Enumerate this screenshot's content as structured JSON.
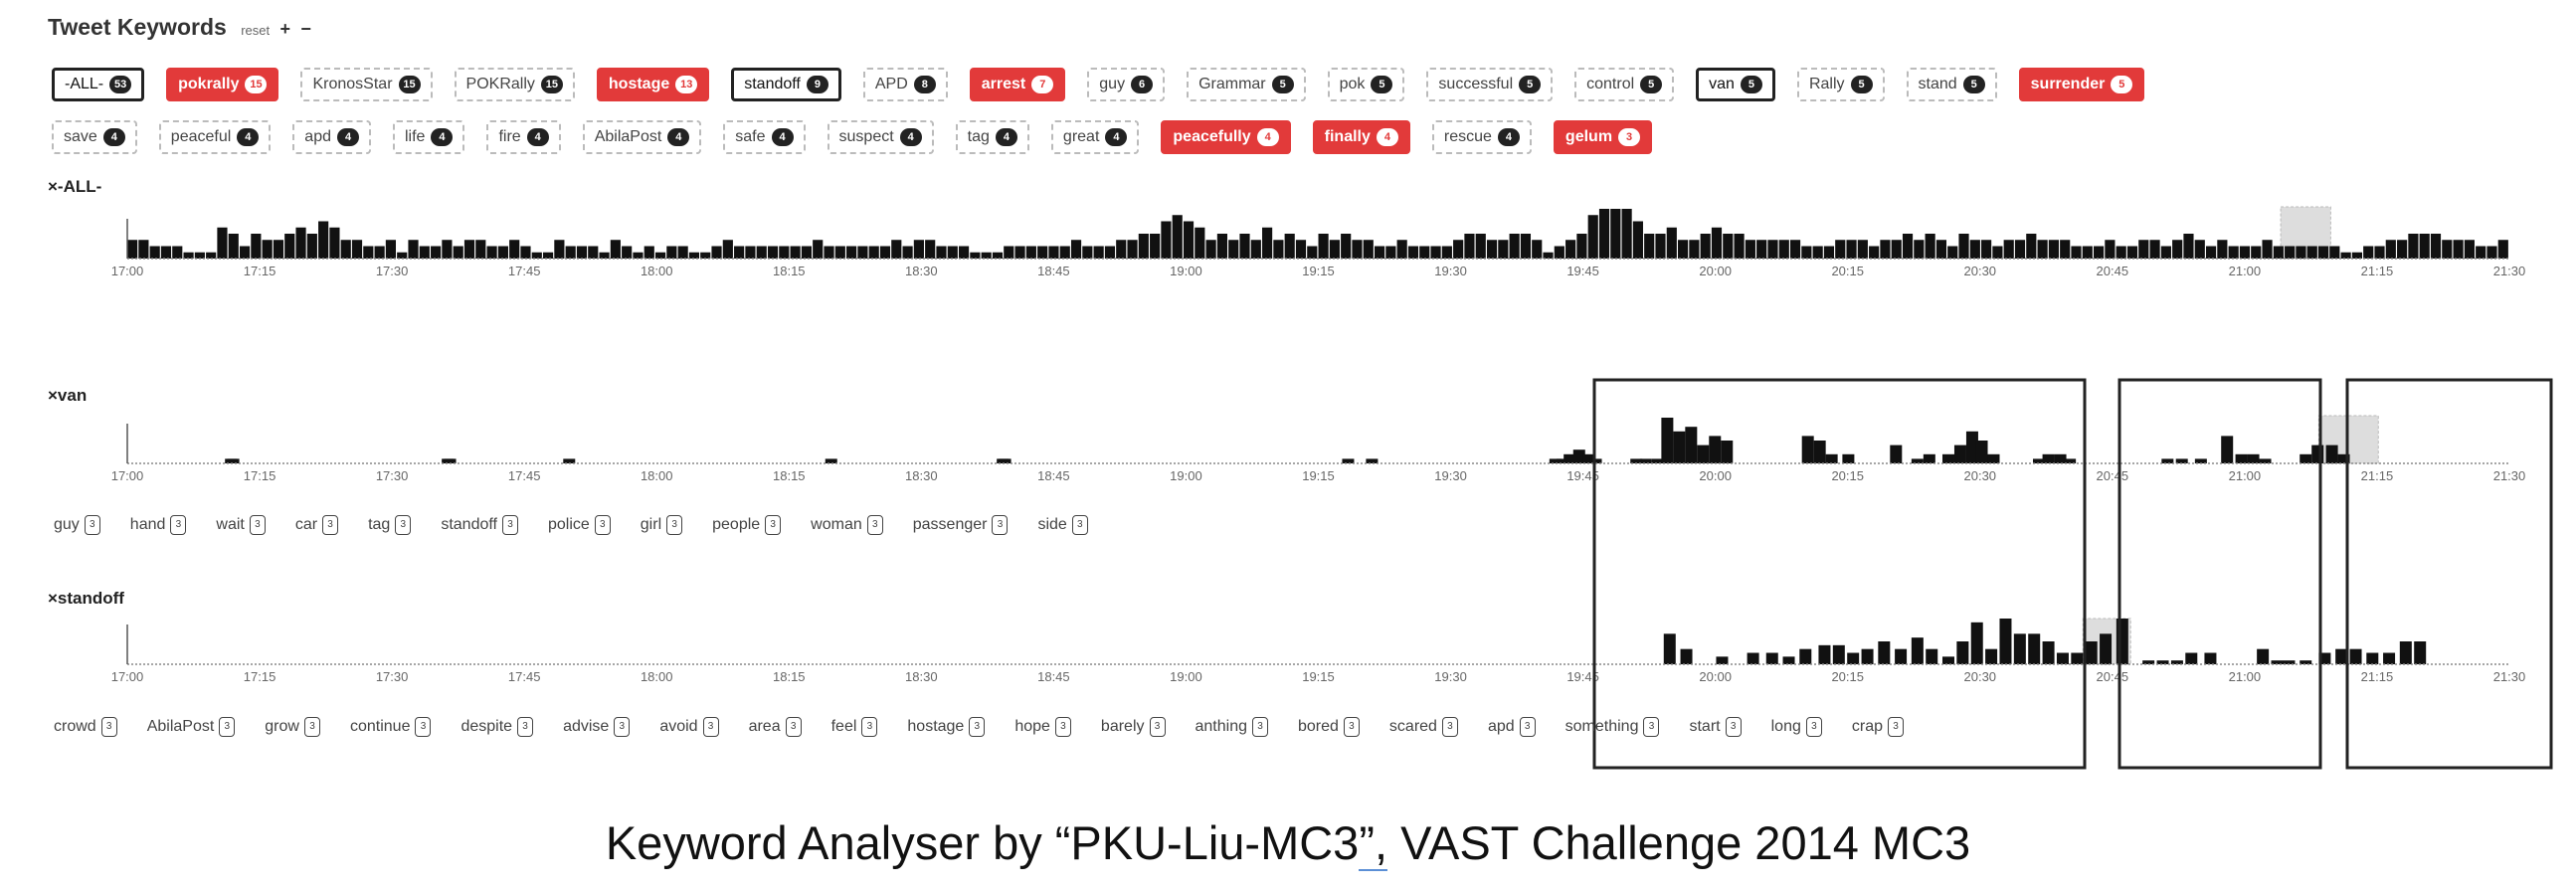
{
  "app": {
    "title": "Tweet Keywords",
    "reset_label": "reset",
    "add_label": "+",
    "remove_label": "−"
  },
  "keywords_row1": [
    {
      "label": "-ALL-",
      "count": "53",
      "style": "sel"
    },
    {
      "label": "pokrally",
      "count": "15",
      "style": "hot"
    },
    {
      "label": "KronosStar",
      "count": "15",
      "style": ""
    },
    {
      "label": "POKRally",
      "count": "15",
      "style": ""
    },
    {
      "label": "hostage",
      "count": "13",
      "style": "hot"
    },
    {
      "label": "standoff",
      "count": "9",
      "style": "sel"
    },
    {
      "label": "APD",
      "count": "8",
      "style": ""
    },
    {
      "label": "arrest",
      "count": "7",
      "style": "hot"
    },
    {
      "label": "guy",
      "count": "6",
      "style": ""
    },
    {
      "label": "Grammar",
      "count": "5",
      "style": ""
    },
    {
      "label": "pok",
      "count": "5",
      "style": ""
    },
    {
      "label": "successful",
      "count": "5",
      "style": ""
    },
    {
      "label": "control",
      "count": "5",
      "style": ""
    },
    {
      "label": "van",
      "count": "5",
      "style": "sel"
    },
    {
      "label": "Rally",
      "count": "5",
      "style": ""
    },
    {
      "label": "stand",
      "count": "5",
      "style": ""
    },
    {
      "label": "surrender",
      "count": "5",
      "style": "hot"
    }
  ],
  "keywords_row2": [
    {
      "label": "save",
      "count": "4",
      "style": ""
    },
    {
      "label": "peaceful",
      "count": "4",
      "style": ""
    },
    {
      "label": "apd",
      "count": "4",
      "style": ""
    },
    {
      "label": "life",
      "count": "4",
      "style": ""
    },
    {
      "label": "fire",
      "count": "4",
      "style": ""
    },
    {
      "label": "AbilaPost",
      "count": "4",
      "style": ""
    },
    {
      "label": "safe",
      "count": "4",
      "style": ""
    },
    {
      "label": "suspect",
      "count": "4",
      "style": ""
    },
    {
      "label": "tag",
      "count": "4",
      "style": ""
    },
    {
      "label": "great",
      "count": "4",
      "style": ""
    },
    {
      "label": "peacefully",
      "count": "4",
      "style": "hot"
    },
    {
      "label": "finally",
      "count": "4",
      "style": "hot"
    },
    {
      "label": "rescue",
      "count": "4",
      "style": ""
    },
    {
      "label": "gelum",
      "count": "3",
      "style": "hot"
    }
  ],
  "panels": {
    "all": {
      "label": "×-ALL-"
    },
    "van": {
      "label": "×van"
    },
    "standoff": {
      "label": "×standoff"
    }
  },
  "time_ticks": [
    "17:00",
    "17:15",
    "17:30",
    "17:45",
    "18:00",
    "18:15",
    "18:30",
    "18:45",
    "19:00",
    "19:15",
    "19:30",
    "19:45",
    "20:00",
    "20:15",
    "20:30",
    "20:45",
    "21:00",
    "21:15",
    "21:30"
  ],
  "van_keywords": [
    {
      "label": "guy",
      "count": "3"
    },
    {
      "label": "hand",
      "count": "3"
    },
    {
      "label": "wait",
      "count": "3"
    },
    {
      "label": "car",
      "count": "3"
    },
    {
      "label": "tag",
      "count": "3"
    },
    {
      "label": "standoff",
      "count": "3"
    },
    {
      "label": "police",
      "count": "3"
    },
    {
      "label": "girl",
      "count": "3"
    },
    {
      "label": "people",
      "count": "3"
    },
    {
      "label": "woman",
      "count": "3"
    },
    {
      "label": "passenger",
      "count": "3"
    },
    {
      "label": "side",
      "count": "3"
    }
  ],
  "standoff_keywords": [
    {
      "label": "crowd",
      "count": "3"
    },
    {
      "label": "AbilaPost",
      "count": "3"
    },
    {
      "label": "grow",
      "count": "3"
    },
    {
      "label": "continue",
      "count": "3"
    },
    {
      "label": "despite",
      "count": "3"
    },
    {
      "label": "advise",
      "count": "3"
    },
    {
      "label": "avoid",
      "count": "3"
    },
    {
      "label": "area",
      "count": "3"
    },
    {
      "label": "feel",
      "count": "3"
    },
    {
      "label": "hostage",
      "count": "3"
    },
    {
      "label": "hope",
      "count": "3"
    },
    {
      "label": "barely",
      "count": "3"
    },
    {
      "label": "anthing",
      "count": "3"
    },
    {
      "label": "bored",
      "count": "3"
    },
    {
      "label": "scared",
      "count": "3"
    },
    {
      "label": "apd",
      "count": "3"
    },
    {
      "label": "something",
      "count": "3"
    },
    {
      "label": "start",
      "count": "3"
    },
    {
      "label": "long",
      "count": "3"
    },
    {
      "label": "crap",
      "count": "3"
    }
  ],
  "chart_data": [
    {
      "type": "bar",
      "title": "-ALL-",
      "x_range": [
        "17:00",
        "21:30"
      ],
      "values": [
        3,
        3,
        2,
        2,
        2,
        1,
        1,
        1,
        5,
        4,
        2,
        4,
        3,
        3,
        4,
        5,
        4,
        6,
        5,
        3,
        3,
        2,
        2,
        3,
        1,
        3,
        2,
        2,
        3,
        2,
        3,
        3,
        2,
        2,
        3,
        2,
        1,
        1,
        3,
        2,
        2,
        2,
        1,
        3,
        2,
        1,
        2,
        1,
        2,
        2,
        1,
        1,
        2,
        3,
        2,
        2,
        2,
        2,
        2,
        2,
        2,
        3,
        2,
        2,
        2,
        2,
        2,
        2,
        3,
        2,
        3,
        3,
        2,
        2,
        2,
        1,
        1,
        1,
        2,
        2,
        2,
        2,
        2,
        2,
        3,
        2,
        2,
        2,
        3,
        3,
        4,
        4,
        6,
        7,
        6,
        5,
        3,
        4,
        3,
        4,
        3,
        5,
        3,
        4,
        3,
        2,
        4,
        3,
        4,
        3,
        3,
        2,
        2,
        3,
        2,
        2,
        2,
        2,
        3,
        4,
        4,
        3,
        3,
        4,
        4,
        3,
        1,
        2,
        3,
        4,
        7,
        8,
        8,
        8,
        6,
        4,
        4,
        5,
        3,
        3,
        4,
        5,
        4,
        4,
        3,
        3,
        3,
        3,
        3,
        2,
        2,
        2,
        3,
        3,
        3,
        2,
        3,
        3,
        4,
        3,
        4,
        3,
        2,
        4,
        3,
        3,
        2,
        3,
        3,
        4,
        3,
        3,
        3,
        2,
        2,
        2,
        3,
        2,
        2,
        3,
        3,
        2,
        3,
        4,
        3,
        2,
        3,
        2,
        2,
        2,
        3,
        2,
        2,
        2,
        2,
        2,
        2,
        1,
        1,
        2,
        2,
        3,
        3,
        4,
        4,
        4,
        3,
        3,
        3,
        2,
        2,
        3
      ],
      "brush": [
        0.904,
        0.925
      ]
    },
    {
      "type": "bar",
      "title": "van",
      "x_range": [
        "17:00",
        "21:30"
      ],
      "bars": [
        [
          0.041,
          1
        ],
        [
          0.042,
          1
        ],
        [
          0.132,
          1
        ],
        [
          0.133,
          1
        ],
        [
          0.183,
          1
        ],
        [
          0.293,
          1
        ],
        [
          0.365,
          1
        ],
        [
          0.366,
          1
        ],
        [
          0.52,
          1
        ],
        [
          0.51,
          1
        ],
        [
          0.597,
          1
        ],
        [
          0.6,
          1
        ],
        [
          0.603,
          2
        ],
        [
          0.607,
          3
        ],
        [
          0.611,
          2
        ],
        [
          0.614,
          1
        ],
        [
          0.631,
          1
        ],
        [
          0.635,
          1
        ],
        [
          0.64,
          1
        ],
        [
          0.644,
          10
        ],
        [
          0.649,
          7
        ],
        [
          0.654,
          8
        ],
        [
          0.659,
          4
        ],
        [
          0.664,
          6
        ],
        [
          0.669,
          5
        ],
        [
          0.703,
          6
        ],
        [
          0.708,
          5
        ],
        [
          0.713,
          2
        ],
        [
          0.72,
          2
        ],
        [
          0.74,
          4
        ],
        [
          0.749,
          1
        ],
        [
          0.754,
          2
        ],
        [
          0.762,
          2
        ],
        [
          0.767,
          4
        ],
        [
          0.772,
          7
        ],
        [
          0.776,
          5
        ],
        [
          0.781,
          2
        ],
        [
          0.8,
          1
        ],
        [
          0.804,
          2
        ],
        [
          0.809,
          2
        ],
        [
          0.813,
          1
        ],
        [
          0.854,
          1
        ],
        [
          0.86,
          1
        ],
        [
          0.868,
          1
        ],
        [
          0.879,
          6
        ],
        [
          0.885,
          2
        ],
        [
          0.89,
          2
        ],
        [
          0.895,
          1
        ],
        [
          0.912,
          2
        ],
        [
          0.917,
          4
        ],
        [
          0.923,
          4
        ],
        [
          0.928,
          2
        ]
      ],
      "brush": [
        0.92,
        0.945
      ]
    },
    {
      "type": "bar",
      "title": "standoff",
      "x_range": [
        "17:00",
        "21:30"
      ],
      "bars": [
        [
          0.645,
          8
        ],
        [
          0.652,
          4
        ],
        [
          0.667,
          2
        ],
        [
          0.68,
          3
        ],
        [
          0.688,
          3
        ],
        [
          0.695,
          2
        ],
        [
          0.702,
          4
        ],
        [
          0.71,
          5
        ],
        [
          0.716,
          5
        ],
        [
          0.722,
          3
        ],
        [
          0.728,
          4
        ],
        [
          0.735,
          6
        ],
        [
          0.742,
          4
        ],
        [
          0.749,
          7
        ],
        [
          0.755,
          4
        ],
        [
          0.762,
          2
        ],
        [
          0.768,
          6
        ],
        [
          0.774,
          11
        ],
        [
          0.78,
          4
        ],
        [
          0.786,
          12
        ],
        [
          0.792,
          8
        ],
        [
          0.798,
          8
        ],
        [
          0.804,
          6
        ],
        [
          0.81,
          3
        ],
        [
          0.816,
          3
        ],
        [
          0.822,
          6
        ],
        [
          0.828,
          8
        ],
        [
          0.835,
          12
        ],
        [
          0.846,
          1
        ],
        [
          0.852,
          1
        ],
        [
          0.858,
          1
        ],
        [
          0.864,
          3
        ],
        [
          0.872,
          3
        ],
        [
          0.894,
          4
        ],
        [
          0.9,
          1
        ],
        [
          0.905,
          1
        ],
        [
          0.912,
          1
        ],
        [
          0.92,
          3
        ],
        [
          0.927,
          4
        ],
        [
          0.933,
          4
        ],
        [
          0.94,
          3
        ],
        [
          0.947,
          3
        ],
        [
          0.954,
          6
        ],
        [
          0.96,
          6
        ]
      ],
      "brush": [
        0.821,
        0.841
      ]
    }
  ],
  "caption": {
    "pre": "Keyword Analyser by “PKU-Liu-MC3",
    "ul": "”,",
    "post": " VAST Challenge 2014 MC3"
  }
}
